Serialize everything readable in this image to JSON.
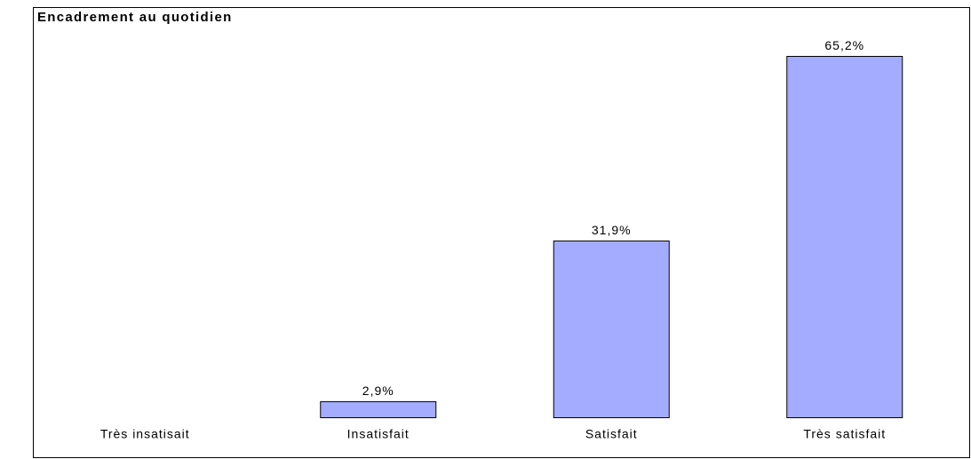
{
  "chart_data": {
    "type": "bar",
    "title": "Encadrement au quotidien",
    "categories": [
      "Très insatisait",
      "Insatisfait",
      "Satisfait",
      "Très satisfait"
    ],
    "values": [
      null,
      2.9,
      31.9,
      65.2
    ],
    "value_labels": [
      null,
      "2,9%",
      "31,9%",
      "65,2%"
    ],
    "color": "#a3acff"
  }
}
